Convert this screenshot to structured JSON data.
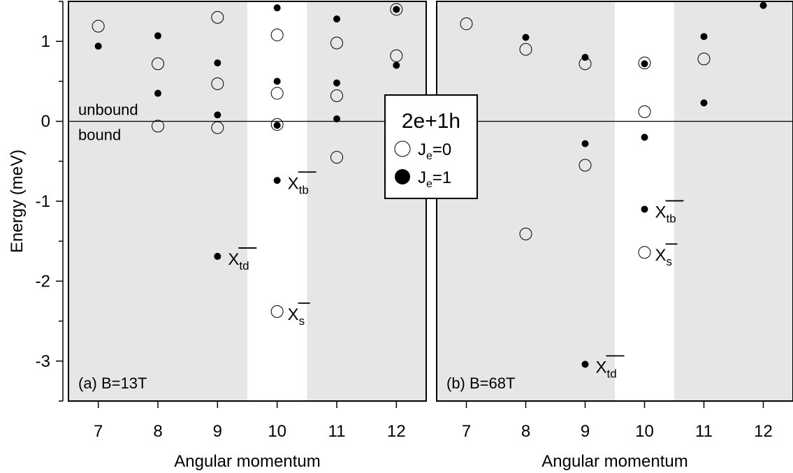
{
  "colors": {
    "shade": "#e6e6e6",
    "background": "#ffffff",
    "ink": "#000000"
  },
  "chart_data": [
    {
      "type": "scatter",
      "panel_label": "(a) B=13T",
      "xlabel": "Angular momentum",
      "ylabel": "Energy (meV)",
      "xlim": [
        6.5,
        12.5
      ],
      "ylim": [
        -3.5,
        1.5
      ],
      "x_ticks": [
        7,
        8,
        9,
        10,
        11,
        12
      ],
      "y_ticks": [
        1,
        0,
        -1,
        -2,
        -3
      ],
      "y_tick_labels": [
        "1",
        "0",
        "-1",
        "-2",
        "-3"
      ],
      "shaded_x_ranges": [
        [
          6.5,
          9.5
        ],
        [
          10.5,
          12.5
        ]
      ],
      "zero_line_labels": {
        "above": "unbound",
        "below": "bound"
      },
      "series": [
        {
          "name": "Je=0",
          "marker": "open-circle",
          "points": [
            [
              7,
              1.19
            ],
            [
              8,
              0.72
            ],
            [
              8,
              -0.06
            ],
            [
              9,
              1.3
            ],
            [
              9,
              0.47
            ],
            [
              9,
              -0.08
            ],
            [
              10,
              1.08
            ],
            [
              10,
              0.35
            ],
            [
              10,
              -0.04
            ],
            [
              10,
              -2.38
            ],
            [
              11,
              0.98
            ],
            [
              11,
              0.32
            ],
            [
              11,
              -0.45
            ],
            [
              12,
              1.4
            ],
            [
              12,
              0.82
            ]
          ]
        },
        {
          "name": "Je=1",
          "marker": "filled-dot",
          "points": [
            [
              7,
              0.94
            ],
            [
              8,
              1.07
            ],
            [
              8,
              0.35
            ],
            [
              9,
              0.73
            ],
            [
              9,
              0.08
            ],
            [
              9,
              -1.69
            ],
            [
              10,
              1.42
            ],
            [
              10,
              0.5
            ],
            [
              10,
              -0.05
            ],
            [
              10,
              -0.74
            ],
            [
              11,
              1.28
            ],
            [
              11,
              0.48
            ],
            [
              11,
              0.03
            ],
            [
              12,
              1.4
            ],
            [
              12,
              0.7
            ]
          ]
        }
      ],
      "annotations": [
        {
          "main": "X",
          "sub": "td",
          "x": 9,
          "y": -1.69
        },
        {
          "main": "X",
          "sub": "tb",
          "x": 10,
          "y": -0.74
        },
        {
          "main": "X",
          "sub": "s",
          "x": 10,
          "y": -2.38
        }
      ]
    },
    {
      "type": "scatter",
      "panel_label": "(b) B=68T",
      "xlabel": "Angular momentum",
      "ylabel": "",
      "xlim": [
        6.5,
        12.5
      ],
      "ylim": [
        -3.5,
        1.5
      ],
      "x_ticks": [
        7,
        8,
        9,
        10,
        11,
        12
      ],
      "shaded_x_ranges": [
        [
          6.5,
          9.5
        ],
        [
          10.5,
          12.5
        ]
      ],
      "series": [
        {
          "name": "Je=0",
          "marker": "open-circle",
          "points": [
            [
              7,
              1.22
            ],
            [
              8,
              0.9
            ],
            [
              8,
              -1.41
            ],
            [
              9,
              0.72
            ],
            [
              9,
              -0.55
            ],
            [
              10,
              0.73
            ],
            [
              10,
              0.12
            ],
            [
              10,
              -1.64
            ],
            [
              11,
              0.78
            ]
          ]
        },
        {
          "name": "Je=1",
          "marker": "filled-dot",
          "points": [
            [
              8,
              1.05
            ],
            [
              9,
              0.8
            ],
            [
              9,
              -0.28
            ],
            [
              9,
              -3.04
            ],
            [
              10,
              0.72
            ],
            [
              10,
              -0.2
            ],
            [
              10,
              -1.1
            ],
            [
              11,
              1.06
            ],
            [
              11,
              0.23
            ],
            [
              12,
              1.45
            ]
          ]
        }
      ],
      "annotations": [
        {
          "main": "X",
          "sub": "tb",
          "x": 10,
          "y": -1.1
        },
        {
          "main": "X",
          "sub": "s",
          "x": 10,
          "y": -1.64
        },
        {
          "main": "X",
          "sub": "td",
          "x": 9,
          "y": -3.04
        }
      ]
    }
  ],
  "legend": {
    "title": "2e+1h",
    "entries": [
      {
        "marker": "open-circle",
        "main": "J",
        "sub": "e",
        "rest": "=0"
      },
      {
        "marker": "filled-dot",
        "main": "J",
        "sub": "e",
        "rest": "=1"
      }
    ]
  }
}
